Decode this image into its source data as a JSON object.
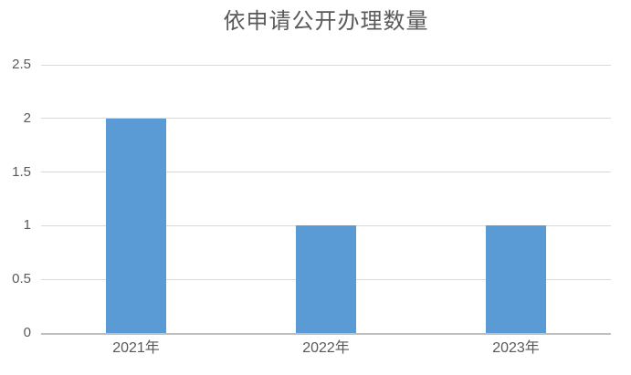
{
  "chart_data": {
    "type": "bar",
    "title": "依申请公开办理数量",
    "categories": [
      "2021年",
      "2022年",
      "2023年"
    ],
    "values": [
      2,
      1,
      1
    ],
    "xlabel": "",
    "ylabel": "",
    "ylim": [
      0,
      2.5
    ],
    "ytick_step": 0.5,
    "yticks": [
      "0",
      "0.5",
      "1",
      "1.5",
      "2",
      "2.5"
    ],
    "grid": true,
    "legend_position": "none",
    "colors": {
      "bar": "#5b9bd5",
      "gridline": "#d9d9d9",
      "axis_line": "#bfbfbf",
      "title_text": "#595959",
      "tick_text": "#595959",
      "background": "#ffffff"
    }
  }
}
